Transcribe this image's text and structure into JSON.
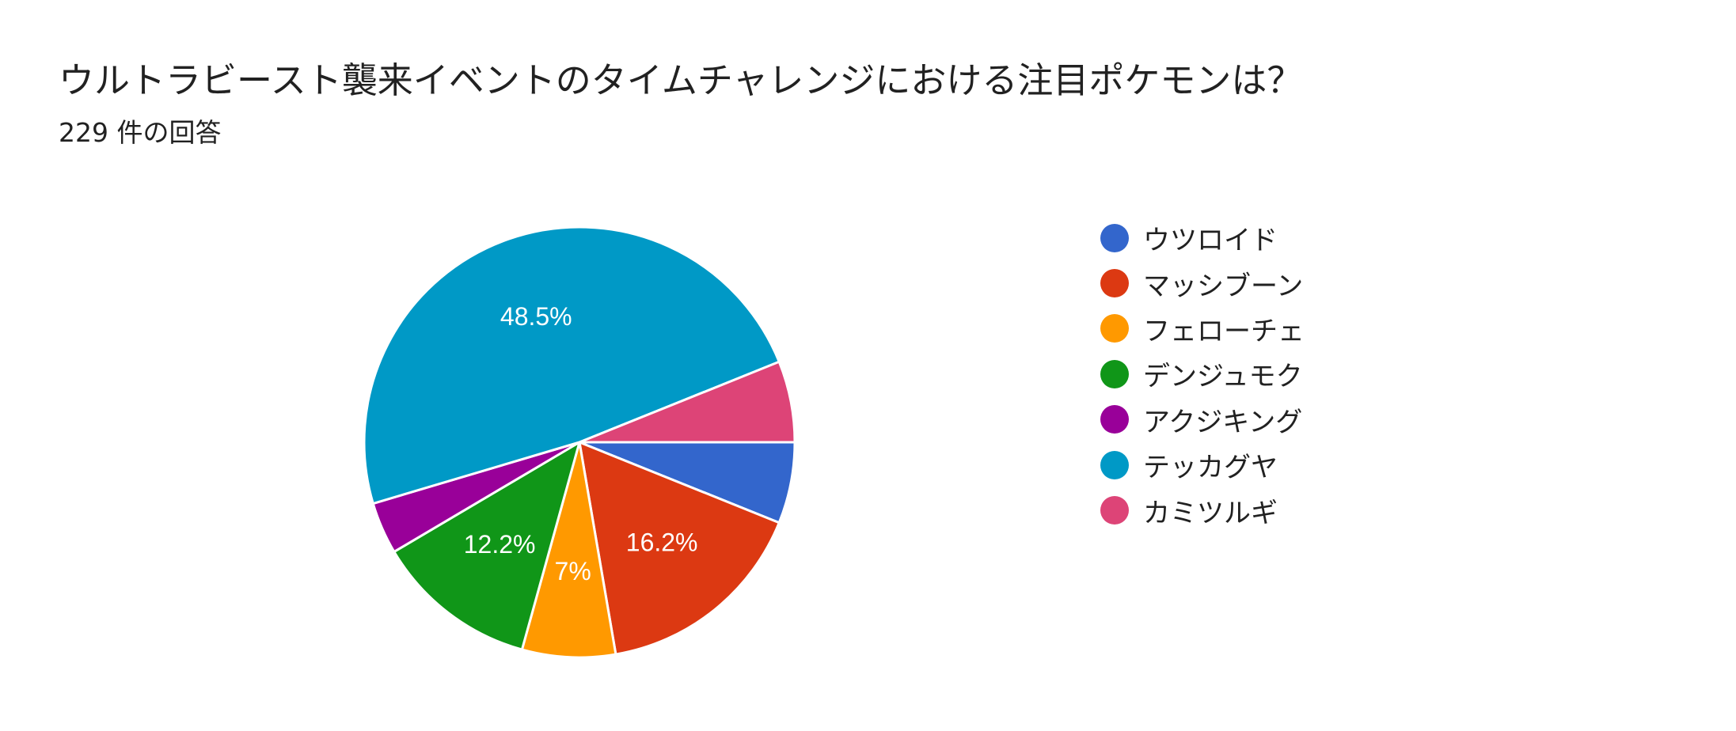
{
  "header": {
    "title": "ウルトラビースト襲来イベントのタイムチャレンジにおける注目ポケモンは？",
    "response_count": "229 件の回答"
  },
  "chart_data": {
    "type": "pie",
    "title": "ウルトラビースト襲来イベントのタイムチャレンジにおける注目ポケモンは？",
    "legend_position": "right",
    "start_angle_deg": 90,
    "direction": "clockwise",
    "slices": [
      {
        "label": "ウツロイド",
        "percent": 6.1,
        "display": "",
        "color": "#3366cc"
      },
      {
        "label": "マッシブーン",
        "percent": 16.2,
        "display": "16.2%",
        "color": "#dc3912"
      },
      {
        "label": "フェローチェ",
        "percent": 7.0,
        "display": "7%",
        "color": "#ff9900"
      },
      {
        "label": "デンジュモク",
        "percent": 12.2,
        "display": "12.2%",
        "color": "#109618"
      },
      {
        "label": "アクジキング",
        "percent": 3.9,
        "display": "",
        "color": "#990099"
      },
      {
        "label": "テッカグヤ",
        "percent": 48.5,
        "display": "48.5%",
        "color": "#0099c6"
      },
      {
        "label": "カミツルギ",
        "percent": 6.1,
        "display": "",
        "color": "#dd4477"
      }
    ]
  }
}
